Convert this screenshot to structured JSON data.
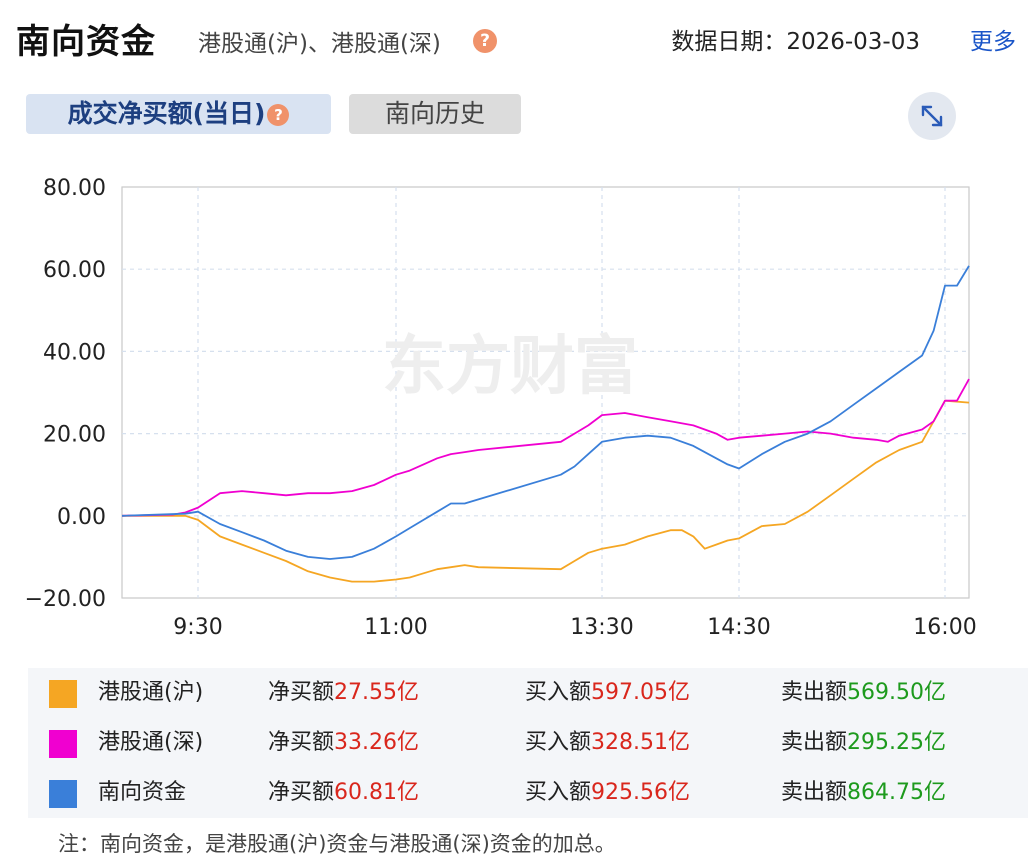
{
  "header": {
    "title": "南向资金",
    "subtitle": "港股通(沪)、港股通(深)",
    "help_icon": "question-icon",
    "date_label": "数据日期：",
    "date_value": "2026-03-03",
    "more_link": "更多"
  },
  "tabs": [
    {
      "label": "成交净买额(当日)",
      "active": true
    },
    {
      "label": "南向历史",
      "active": false
    }
  ],
  "expand_icon": "expand-icon",
  "watermark": "东方财富",
  "chart_data": {
    "type": "line",
    "x_ticks": [
      "9:30",
      "11:00",
      "13:30",
      "14:30",
      "16:00"
    ],
    "y_ticks": [
      "80.00",
      "60.00",
      "40.00",
      "20.00",
      "0.00",
      "−20.00"
    ],
    "ylim": [
      -20,
      80
    ],
    "grid": true,
    "series": [
      {
        "name": "港股通(沪)",
        "color": "#f5a623",
        "points": [
          [
            "9:00",
            0
          ],
          [
            "9:25",
            0
          ],
          [
            "9:30",
            -1
          ],
          [
            "9:40",
            -5
          ],
          [
            "9:50",
            -7
          ],
          [
            "10:00",
            -9
          ],
          [
            "10:10",
            -11
          ],
          [
            "10:20",
            -13.5
          ],
          [
            "10:30",
            -15
          ],
          [
            "10:40",
            -16
          ],
          [
            "10:50",
            -16
          ],
          [
            "11:00",
            -15.5
          ],
          [
            "11:10",
            -15
          ],
          [
            "11:20",
            -14
          ],
          [
            "11:30",
            -13
          ],
          [
            "11:40",
            -12.5
          ],
          [
            "11:50",
            -12
          ],
          [
            "12:00",
            -12.5
          ],
          [
            "13:00",
            -13
          ],
          [
            "13:10",
            -11
          ],
          [
            "13:20",
            -9
          ],
          [
            "13:30",
            -8
          ],
          [
            "13:40",
            -7
          ],
          [
            "13:50",
            -5
          ],
          [
            "14:00",
            -3.5
          ],
          [
            "14:05",
            -3.5
          ],
          [
            "14:10",
            -5
          ],
          [
            "14:15",
            -8
          ],
          [
            "14:20",
            -7
          ],
          [
            "14:25",
            -6
          ],
          [
            "14:30",
            -5.5
          ],
          [
            "14:40",
            -2.5
          ],
          [
            "14:50",
            -2
          ],
          [
            "15:00",
            1
          ],
          [
            "15:10",
            5
          ],
          [
            "15:20",
            9
          ],
          [
            "15:30",
            13
          ],
          [
            "15:40",
            16
          ],
          [
            "15:50",
            18
          ],
          [
            "15:55",
            23
          ],
          [
            "16:00",
            28
          ],
          [
            "16:10",
            27.55
          ]
        ]
      },
      {
        "name": "港股通(深)",
        "color": "#f000d0",
        "points": [
          [
            "9:00",
            0
          ],
          [
            "9:20",
            0.3
          ],
          [
            "9:25",
            0.8
          ],
          [
            "9:30",
            2
          ],
          [
            "9:40",
            5.5
          ],
          [
            "9:50",
            6
          ],
          [
            "10:00",
            5.5
          ],
          [
            "10:10",
            5
          ],
          [
            "10:20",
            5.5
          ],
          [
            "10:30",
            5.5
          ],
          [
            "10:40",
            6
          ],
          [
            "10:50",
            7.5
          ],
          [
            "11:00",
            10
          ],
          [
            "11:10",
            11
          ],
          [
            "11:20",
            12.5
          ],
          [
            "11:30",
            14
          ],
          [
            "11:40",
            15
          ],
          [
            "11:50",
            15.5
          ],
          [
            "12:00",
            16
          ],
          [
            "13:00",
            18
          ],
          [
            "13:10",
            20
          ],
          [
            "13:20",
            22
          ],
          [
            "13:30",
            24.5
          ],
          [
            "13:40",
            25
          ],
          [
            "13:50",
            24
          ],
          [
            "14:00",
            23
          ],
          [
            "14:10",
            22
          ],
          [
            "14:20",
            20
          ],
          [
            "14:25",
            18.5
          ],
          [
            "14:30",
            19
          ],
          [
            "14:40",
            19.5
          ],
          [
            "14:50",
            20
          ],
          [
            "15:00",
            20.5
          ],
          [
            "15:10",
            20
          ],
          [
            "15:20",
            19
          ],
          [
            "15:30",
            18.5
          ],
          [
            "15:35",
            18
          ],
          [
            "15:40",
            19.5
          ],
          [
            "15:50",
            21
          ],
          [
            "15:55",
            23
          ],
          [
            "16:00",
            28
          ],
          [
            "16:05",
            28
          ],
          [
            "16:10",
            33.26
          ]
        ]
      },
      {
        "name": "南向资金",
        "color": "#3a7fd9",
        "points": [
          [
            "9:00",
            0
          ],
          [
            "9:25",
            0.5
          ],
          [
            "9:30",
            1
          ],
          [
            "9:40",
            -2
          ],
          [
            "9:50",
            -4
          ],
          [
            "10:00",
            -6
          ],
          [
            "10:10",
            -8.5
          ],
          [
            "10:20",
            -10
          ],
          [
            "10:30",
            -10.5
          ],
          [
            "10:40",
            -10
          ],
          [
            "10:50",
            -8
          ],
          [
            "11:00",
            -5
          ],
          [
            "11:10",
            -3
          ],
          [
            "11:20",
            -1
          ],
          [
            "11:30",
            1
          ],
          [
            "11:40",
            3
          ],
          [
            "11:50",
            3
          ],
          [
            "12:00",
            4
          ],
          [
            "13:00",
            10
          ],
          [
            "13:10",
            12
          ],
          [
            "13:20",
            15
          ],
          [
            "13:30",
            18
          ],
          [
            "13:40",
            19
          ],
          [
            "13:50",
            19.5
          ],
          [
            "14:00",
            19
          ],
          [
            "14:10",
            17
          ],
          [
            "14:20",
            14
          ],
          [
            "14:25",
            12.5
          ],
          [
            "14:30",
            11.5
          ],
          [
            "14:40",
            15
          ],
          [
            "14:50",
            18
          ],
          [
            "15:00",
            20
          ],
          [
            "15:10",
            23
          ],
          [
            "15:20",
            27
          ],
          [
            "15:30",
            31
          ],
          [
            "15:40",
            35
          ],
          [
            "15:50",
            39
          ],
          [
            "15:55",
            45
          ],
          [
            "16:00",
            56
          ],
          [
            "16:05",
            56
          ],
          [
            "16:10",
            60.81
          ]
        ]
      }
    ]
  },
  "legend": [
    {
      "name": "港股通(沪)",
      "color": "#f5a623",
      "net_label": "净买额",
      "net": "27.55亿",
      "buy_label": "买入额",
      "buy": "597.05亿",
      "sell_label": "卖出额",
      "sell": "569.50亿"
    },
    {
      "name": "港股通(深)",
      "color": "#f000d0",
      "net_label": "净买额",
      "net": "33.26亿",
      "buy_label": "买入额",
      "buy": "328.51亿",
      "sell_label": "卖出额",
      "sell": "295.25亿"
    },
    {
      "name": "南向资金",
      "color": "#3a7fd9",
      "net_label": "净买额",
      "net": "60.81亿",
      "buy_label": "买入额",
      "buy": "925.56亿",
      "sell_label": "卖出额",
      "sell": "864.75亿"
    }
  ],
  "note": "注：南向资金，是港股通(沪)资金与港股通(深)资金的加总。"
}
